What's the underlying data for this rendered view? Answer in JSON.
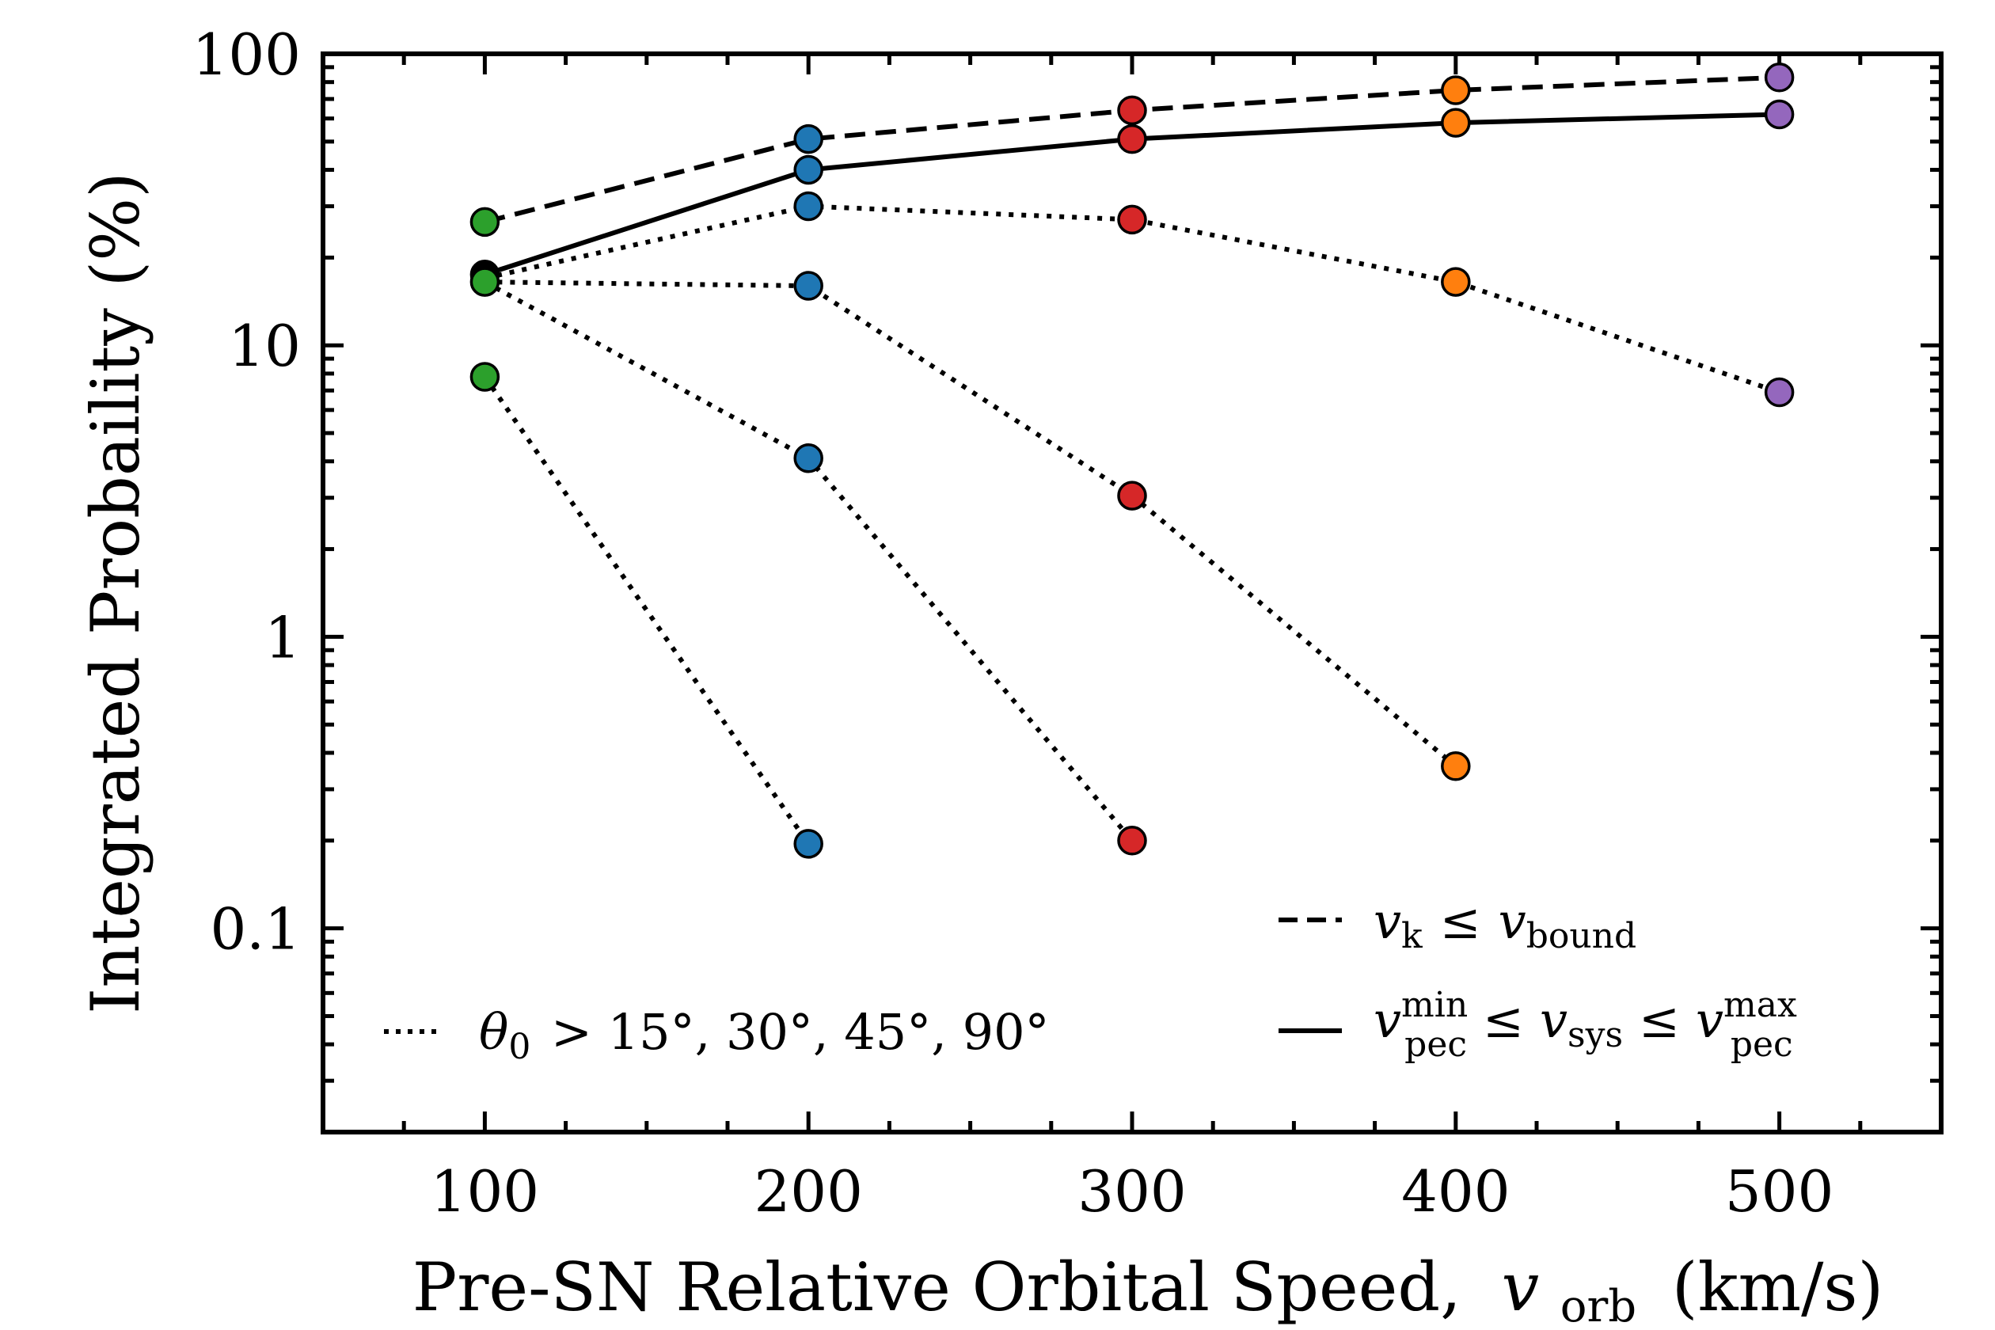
{
  "chart_data": {
    "type": "line",
    "title": "",
    "xlabel_main": "Pre-SN Relative Orbital Speed,",
    "xlabel_var": "v",
    "xlabel_sub": "orb",
    "xlabel_unit": "(km/s)",
    "ylabel": "Integrated Probaility (%)",
    "xscale": "linear",
    "yscale": "log",
    "xlim": [
      50,
      550
    ],
    "ylim": [
      0.02,
      100
    ],
    "x_ticks": [
      100,
      200,
      300,
      400,
      500
    ],
    "x_tick_labels": [
      "100",
      "200",
      "300",
      "400",
      "500"
    ],
    "y_ticks": [
      0.1,
      1,
      10,
      100
    ],
    "y_tick_labels": [
      "0.1",
      "1",
      "10",
      "100"
    ],
    "grid": false,
    "point_colors": {
      "100": "#2ca02c",
      "200": "#1f77b4",
      "300": "#d62728",
      "400": "#ff7f0e",
      "500": "#9467bd"
    },
    "series": [
      {
        "name": "v_k <= v_bound",
        "style": "dashed",
        "x": [
          100,
          200,
          300,
          400,
          500
        ],
        "y": [
          26.5,
          51,
          64,
          75,
          83
        ]
      },
      {
        "name": "v_pec^min <= v_sys <= v_pec^max",
        "style": "solid",
        "x": [
          100,
          200,
          300,
          400,
          500
        ],
        "y": [
          17.5,
          40,
          51,
          58,
          62
        ],
        "first_marker_color": "#000000"
      },
      {
        "name": "theta_0 > 15",
        "style": "dotted",
        "x": [
          100,
          200,
          300,
          400,
          500
        ],
        "y": [
          17,
          30,
          27,
          16.5,
          6.9
        ],
        "hide_first_marker": true
      },
      {
        "name": "theta_0 > 30",
        "style": "dotted",
        "x": [
          100,
          200,
          300,
          400
        ],
        "y": [
          16.5,
          16,
          3.05,
          0.36
        ]
      },
      {
        "name": "theta_0 > 45",
        "style": "dotted",
        "x": [
          100,
          200,
          300
        ],
        "y": [
          16.5,
          4.1,
          0.2
        ],
        "hide_first_marker": true
      },
      {
        "name": "theta_0 > 90",
        "style": "dotted",
        "x": [
          100,
          200
        ],
        "y": [
          7.8,
          0.195
        ]
      }
    ],
    "legend": {
      "dashed": {
        "lhs": "v",
        "lhs_sub": "k",
        "op": "≤",
        "rhs": "v",
        "rhs_sub": "bound"
      },
      "solid": {
        "a": "v",
        "a_sub": "pec",
        "a_sup": "min",
        "op1": "≤",
        "b": "v",
        "b_sub": "sys",
        "op2": "≤",
        "c": "v",
        "c_sub": "pec",
        "c_sup": "max"
      },
      "dotted": {
        "sym": "θ",
        "sym_sub": "0",
        "text": " > 15°, 30°, 45°, 90°"
      }
    }
  }
}
